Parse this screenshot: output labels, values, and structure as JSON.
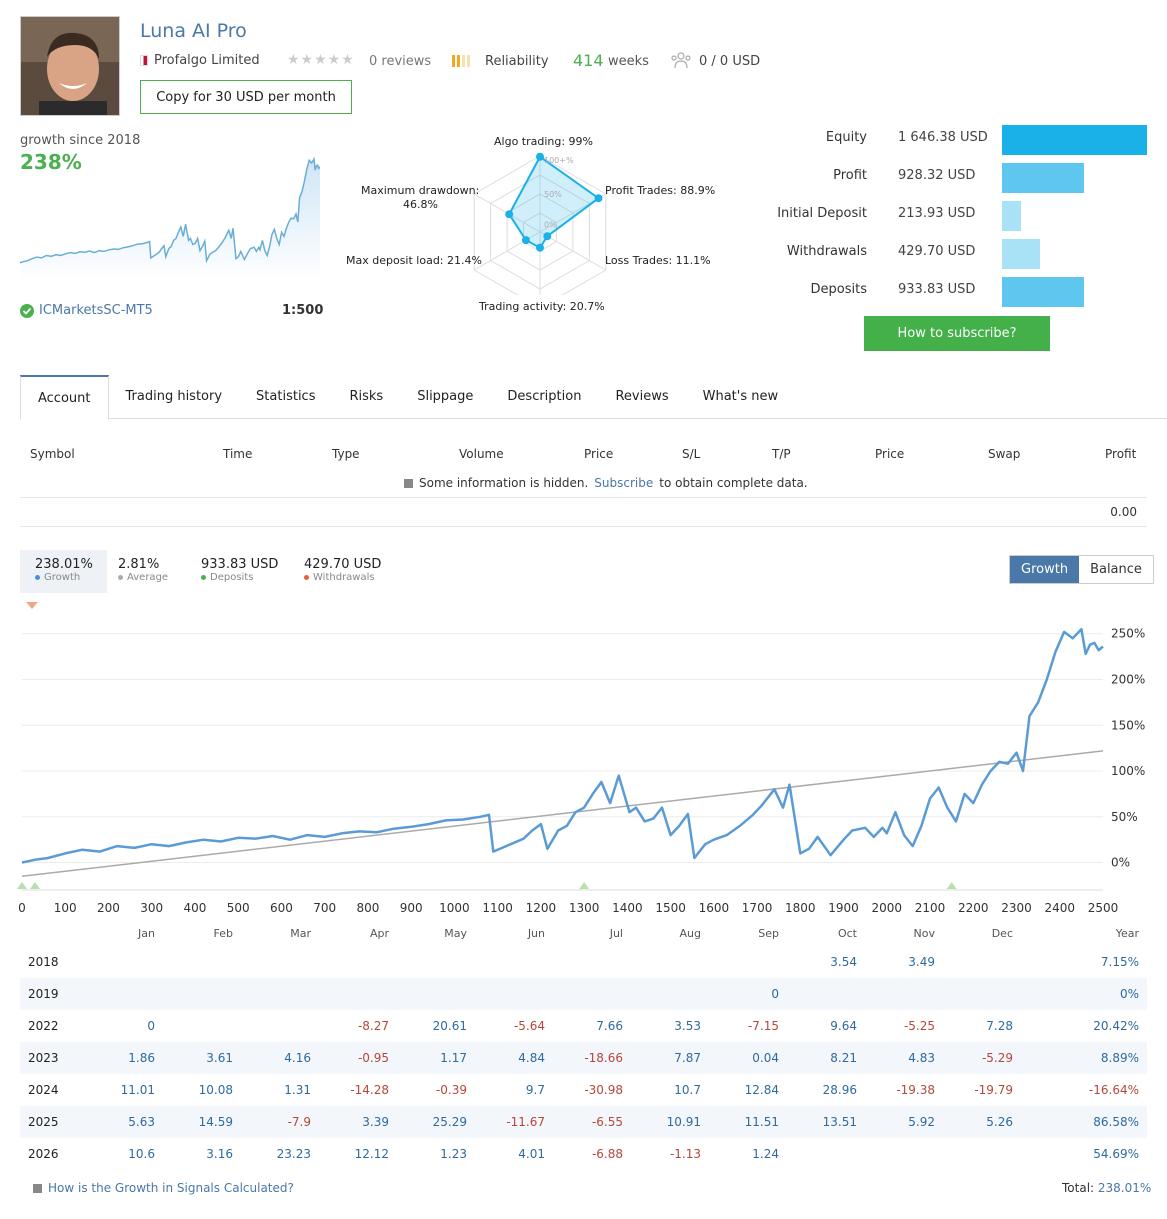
{
  "header": {
    "title": "Luna AI Pro",
    "provider": "Profalgo Limited",
    "reviews": "0 reviews",
    "reliability": "Reliability",
    "weeks_num": "414",
    "weeks_lbl": "weeks",
    "subscribers": "0 / 0 USD",
    "copy_button": "Copy for 30 USD per month",
    "rating_stars": 0
  },
  "summary": {
    "growth_label": "growth since 2018",
    "growth_value": "238%",
    "broker": "ICMarketsSC-MT5",
    "leverage": "1:500"
  },
  "radar": {
    "algo": "Algo trading: 99%",
    "profit_trades": "Profit Trades: 88.9%",
    "loss_trades": "Loss Trades: 11.1%",
    "activity": "Trading activity: 20.7%",
    "deposit_load": "Max deposit load: 21.4%",
    "drawdown_1": "Maximum drawdown:",
    "drawdown_2": "46.8%",
    "ring_100": "100+%",
    "ring_50": "50%",
    "ring_0": "0%",
    "values": [
      99,
      88.9,
      11.1,
      20.7,
      21.4,
      46.8
    ]
  },
  "finance": [
    {
      "label": "Equity",
      "value": "1 646.38 USD",
      "amount": 1646.38,
      "color": "#1ab0e8"
    },
    {
      "label": "Profit",
      "value": "928.32 USD",
      "amount": 928.32,
      "color": "#5fc6ef"
    },
    {
      "label": "Initial Deposit",
      "value": "213.93 USD",
      "amount": 213.93,
      "color": "#a9e1f7"
    },
    {
      "label": "Withdrawals",
      "value": "429.70 USD",
      "amount": 429.7,
      "color": "#a9e1f7"
    },
    {
      "label": "Deposits",
      "value": "933.83 USD",
      "amount": 933.83,
      "color": "#5fc6ef"
    }
  ],
  "subscribe_button": "How to subscribe?",
  "tabs": [
    "Account",
    "Trading history",
    "Statistics",
    "Risks",
    "Slippage",
    "Description",
    "Reviews",
    "What's new"
  ],
  "positions": {
    "columns": [
      "Symbol",
      "Time",
      "Type",
      "Volume",
      "Price",
      "S/L",
      "T/P",
      "Price",
      "Swap",
      "Profit"
    ],
    "hidden_1": "Some information is hidden.",
    "hidden_link": "Subscribe",
    "hidden_2": "to obtain complete data.",
    "total_profit": "0.00"
  },
  "stats": [
    {
      "value": "238.01%",
      "label": "Growth",
      "color": "#4a90d9"
    },
    {
      "value": "2.81%",
      "label": "Average",
      "color": "#aaaaaa"
    },
    {
      "value": "933.83 USD",
      "label": "Deposits",
      "color": "#4caf50"
    },
    {
      "value": "429.70 USD",
      "label": "Withdrawals",
      "color": "#e06040"
    }
  ],
  "toggle": {
    "growth": "Growth",
    "balance": "Balance"
  },
  "chart_data": {
    "type": "line",
    "xlim": [
      0,
      2500
    ],
    "ylim": [
      -30,
      265
    ],
    "x_ticks": [
      "0",
      "100",
      "200",
      "300",
      "400",
      "500",
      "600",
      "700",
      "800",
      "900",
      "1000",
      "1100",
      "1200",
      "1300",
      "1400",
      "1500",
      "1600",
      "1700",
      "1800",
      "1900",
      "2000",
      "2100",
      "2200",
      "2300",
      "2400",
      "2500"
    ],
    "y_ticks": [
      "0%",
      "50%",
      "100%",
      "150%",
      "200%",
      "250%"
    ],
    "growth": [
      [
        0,
        0
      ],
      [
        30,
        3
      ],
      [
        60,
        5
      ],
      [
        100,
        10
      ],
      [
        140,
        14
      ],
      [
        180,
        12
      ],
      [
        220,
        18
      ],
      [
        260,
        16
      ],
      [
        300,
        20
      ],
      [
        340,
        18
      ],
      [
        380,
        22
      ],
      [
        420,
        25
      ],
      [
        460,
        23
      ],
      [
        500,
        27
      ],
      [
        540,
        26
      ],
      [
        580,
        29
      ],
      [
        620,
        25
      ],
      [
        660,
        30
      ],
      [
        700,
        28
      ],
      [
        740,
        32
      ],
      [
        780,
        34
      ],
      [
        820,
        33
      ],
      [
        860,
        37
      ],
      [
        900,
        39
      ],
      [
        940,
        42
      ],
      [
        980,
        46
      ],
      [
        1020,
        47
      ],
      [
        1060,
        50
      ],
      [
        1080,
        52
      ],
      [
        1090,
        12
      ],
      [
        1130,
        20
      ],
      [
        1160,
        26
      ],
      [
        1180,
        35
      ],
      [
        1200,
        42
      ],
      [
        1215,
        15
      ],
      [
        1240,
        35
      ],
      [
        1260,
        40
      ],
      [
        1280,
        55
      ],
      [
        1300,
        60
      ],
      [
        1320,
        75
      ],
      [
        1340,
        88
      ],
      [
        1360,
        65
      ],
      [
        1380,
        95
      ],
      [
        1405,
        55
      ],
      [
        1420,
        60
      ],
      [
        1440,
        45
      ],
      [
        1460,
        48
      ],
      [
        1480,
        60
      ],
      [
        1500,
        30
      ],
      [
        1520,
        40
      ],
      [
        1540,
        53
      ],
      [
        1555,
        5
      ],
      [
        1580,
        20
      ],
      [
        1600,
        25
      ],
      [
        1630,
        30
      ],
      [
        1660,
        40
      ],
      [
        1690,
        52
      ],
      [
        1710,
        62
      ],
      [
        1740,
        80
      ],
      [
        1760,
        60
      ],
      [
        1775,
        85
      ],
      [
        1800,
        10
      ],
      [
        1820,
        15
      ],
      [
        1840,
        28
      ],
      [
        1870,
        8
      ],
      [
        1900,
        25
      ],
      [
        1920,
        35
      ],
      [
        1950,
        38
      ],
      [
        1970,
        28
      ],
      [
        1990,
        38
      ],
      [
        2000,
        32
      ],
      [
        2020,
        55
      ],
      [
        2040,
        30
      ],
      [
        2060,
        18
      ],
      [
        2080,
        40
      ],
      [
        2100,
        70
      ],
      [
        2120,
        82
      ],
      [
        2140,
        60
      ],
      [
        2160,
        45
      ],
      [
        2180,
        75
      ],
      [
        2200,
        65
      ],
      [
        2220,
        85
      ],
      [
        2240,
        100
      ],
      [
        2260,
        110
      ],
      [
        2280,
        108
      ],
      [
        2300,
        120
      ],
      [
        2315,
        100
      ],
      [
        2330,
        160
      ],
      [
        2350,
        175
      ],
      [
        2370,
        200
      ],
      [
        2390,
        230
      ],
      [
        2410,
        252
      ],
      [
        2430,
        245
      ],
      [
        2450,
        255
      ],
      [
        2460,
        228
      ],
      [
        2470,
        238
      ],
      [
        2480,
        240
      ],
      [
        2490,
        232
      ],
      [
        2500,
        236
      ]
    ],
    "trend": [
      [
        0,
        -15
      ],
      [
        2500,
        122
      ]
    ]
  },
  "monthly": {
    "headers": [
      "",
      "Jan",
      "Feb",
      "Mar",
      "Apr",
      "May",
      "Jun",
      "Jul",
      "Aug",
      "Sep",
      "Oct",
      "Nov",
      "Dec",
      "Year"
    ],
    "rows": [
      [
        "2018",
        "",
        "",
        "",
        "",
        "",
        "",
        "",
        "",
        "",
        "3.54",
        "3.49",
        "",
        "7.15%"
      ],
      [
        "2019",
        "",
        "",
        "",
        "",
        "",
        "",
        "",
        "",
        "0",
        "",
        "",
        "",
        "0%"
      ],
      [
        "2022",
        "0",
        "",
        "",
        "-8.27",
        "20.61",
        "-5.64",
        "7.66",
        "3.53",
        "-7.15",
        "9.64",
        "-5.25",
        "7.28",
        "20.42%"
      ],
      [
        "2023",
        "1.86",
        "3.61",
        "4.16",
        "-0.95",
        "1.17",
        "4.84",
        "-18.66",
        "7.87",
        "0.04",
        "8.21",
        "4.83",
        "-5.29",
        "8.89%"
      ],
      [
        "2024",
        "11.01",
        "10.08",
        "1.31",
        "-14.28",
        "-0.39",
        "9.7",
        "-30.98",
        "10.7",
        "12.84",
        "28.96",
        "-19.38",
        "-19.79",
        "-16.64%"
      ],
      [
        "2025",
        "5.63",
        "14.59",
        "-7.9",
        "3.39",
        "25.29",
        "-11.67",
        "-6.55",
        "10.91",
        "11.51",
        "13.51",
        "5.92",
        "5.26",
        "86.58%"
      ],
      [
        "2026",
        "10.6",
        "3.16",
        "23.23",
        "12.12",
        "1.23",
        "4.01",
        "-6.88",
        "-1.13",
        "1.24",
        "",
        "",
        "",
        "54.69%"
      ]
    ]
  },
  "footer": {
    "calc_link": "How is the Growth in Signals Calculated?",
    "total_label": "Total:",
    "total_value": "238.01%"
  }
}
